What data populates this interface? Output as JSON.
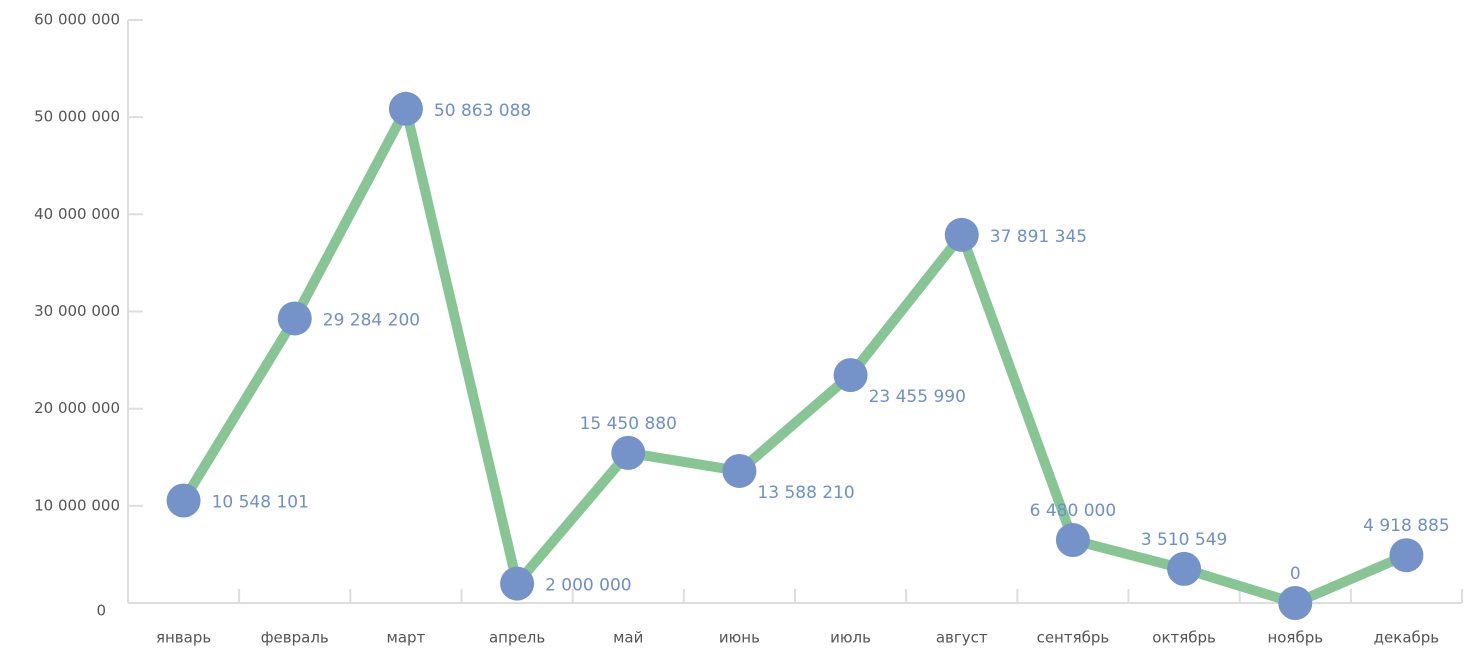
{
  "chart_data": {
    "type": "line",
    "categories": [
      "январь",
      "февраль",
      "март",
      "апрель",
      "май",
      "июнь",
      "июль",
      "август",
      "сентябрь",
      "октябрь",
      "ноябрь",
      "декабрь"
    ],
    "series": [
      {
        "color": "#88c594",
        "marker_color": "#7593c8",
        "values": [
          10548101,
          29284200,
          50863088,
          2000000,
          15450880,
          13588210,
          23455990,
          37891345,
          6480000,
          3510549,
          0,
          4918885
        ],
        "value_labels": [
          "10 548 101",
          "29 284 200",
          "50 863 088",
          "2 000 000",
          "15 450 880",
          "13 588 210",
          "23 455 990",
          "37 891 345",
          "6 480 000",
          "3 510 549",
          "0",
          "4 918 885"
        ]
      }
    ],
    "ylim": [
      0,
      60000000
    ],
    "yticks": [
      0,
      {
        "value": 10000000,
        "label": "10 000 000"
      },
      {
        "value": 20000000,
        "label": "20 000 000"
      },
      {
        "value": 30000000,
        "label": "30 000 000"
      },
      {
        "value": 40000000,
        "label": "40 000 000"
      },
      {
        "value": 50000000,
        "label": "50 000 000"
      },
      {
        "value": 60000000,
        "label": "60 000 000"
      }
    ]
  }
}
